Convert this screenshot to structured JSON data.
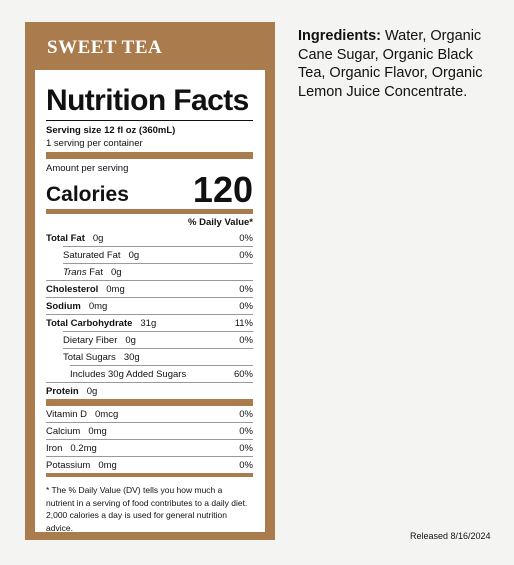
{
  "label": {
    "header": "SWEET TEA",
    "title": "Nutrition Facts",
    "serving_size": "Serving size 12 fl oz (360mL)",
    "servings_per_container": "1 serving per container",
    "amount_per_serving": "Amount per serving",
    "calories_label": "Calories",
    "calories": "120",
    "daily_value_header": "% Daily Value*",
    "rows": [
      {
        "name": "Total Fat",
        "amount": "0g",
        "dv": "0%"
      },
      {
        "name": "Saturated Fat",
        "amount": "0g",
        "dv": "0%"
      },
      {
        "name_italic": "Trans",
        "name": "Fat",
        "amount": "0g"
      },
      {
        "name": "Cholesterol",
        "amount": "0mg",
        "dv": "0%"
      },
      {
        "name": "Sodium",
        "amount": "0mg",
        "dv": "0%"
      },
      {
        "name": "Total Carbohydrate",
        "amount": "31g",
        "dv": "11%"
      },
      {
        "name": "Dietary Fiber",
        "amount": "0g",
        "dv": "0%"
      },
      {
        "name": "Total Sugars",
        "amount": "30g"
      },
      {
        "name": "Includes 30g Added Sugars",
        "dv": "60%"
      },
      {
        "name": "Protein",
        "amount": "0g"
      }
    ],
    "vitamins": [
      {
        "name": "Vitamin D",
        "amount": "0mcg",
        "dv": "0%"
      },
      {
        "name": "Calcium",
        "amount": "0mg",
        "dv": "0%"
      },
      {
        "name": "Iron",
        "amount": "0.2mg",
        "dv": "0%"
      },
      {
        "name": "Potassium",
        "amount": "0mg",
        "dv": "0%"
      }
    ],
    "footnote": "* The % Daily Value (DV) tells you how much a nutrient in a serving of food contributes to a daily diet. 2,000 calories a day is used for general nutrition advice."
  },
  "ingredients": {
    "label": "Ingredients:",
    "text": "Water, Organic Cane Sugar, Organic Black Tea, Organic Flavor, Organic Lemon Juice Concentrate."
  },
  "released": "Released 8/16/2024"
}
